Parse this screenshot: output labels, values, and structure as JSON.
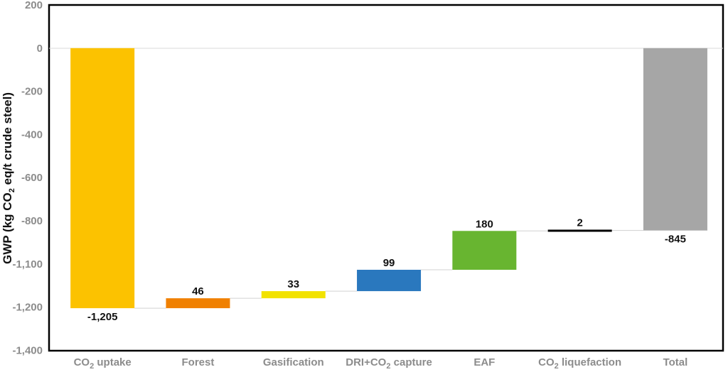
{
  "chart_data": {
    "type": "bar",
    "subtype": "waterfall",
    "title": "",
    "ylabel": "GWP (kg CO2 eq/t crude steel)",
    "ylabel_parts": [
      "GWP (kg CO",
      "2",
      " eq/t crude steel)"
    ],
    "ylim": [
      -1400,
      200
    ],
    "y_ticks": [
      "200",
      "0",
      "-200",
      "-400",
      "-600",
      "-800",
      "-1,100",
      "-1,200",
      "-1,400"
    ],
    "grid": false,
    "legend": "none",
    "categories": [
      "CO2 uptake",
      "Forest",
      "Gasification",
      "DRI+CO2 capture",
      "EAF",
      "CO2 liquefaction",
      "Total"
    ],
    "category_labels": [
      [
        "CO",
        "2",
        "  uptake"
      ],
      [
        "Forest"
      ],
      [
        "Gasification"
      ],
      [
        "DRI+CO",
        "2",
        " capture"
      ],
      [
        "EAF"
      ],
      [
        "CO",
        "2",
        "  liquefaction"
      ],
      [
        "Total"
      ]
    ],
    "values": [
      -1205,
      46,
      33,
      99,
      180,
      2,
      -845
    ],
    "data_labels": [
      "-1,205",
      "46",
      "33",
      "99",
      "180",
      "2",
      "-845"
    ],
    "colors": [
      "#fcc200",
      "#f08000",
      "#f2e200",
      "#2a78be",
      "#68b530",
      "#000000",
      "#a6a6a6"
    ]
  }
}
